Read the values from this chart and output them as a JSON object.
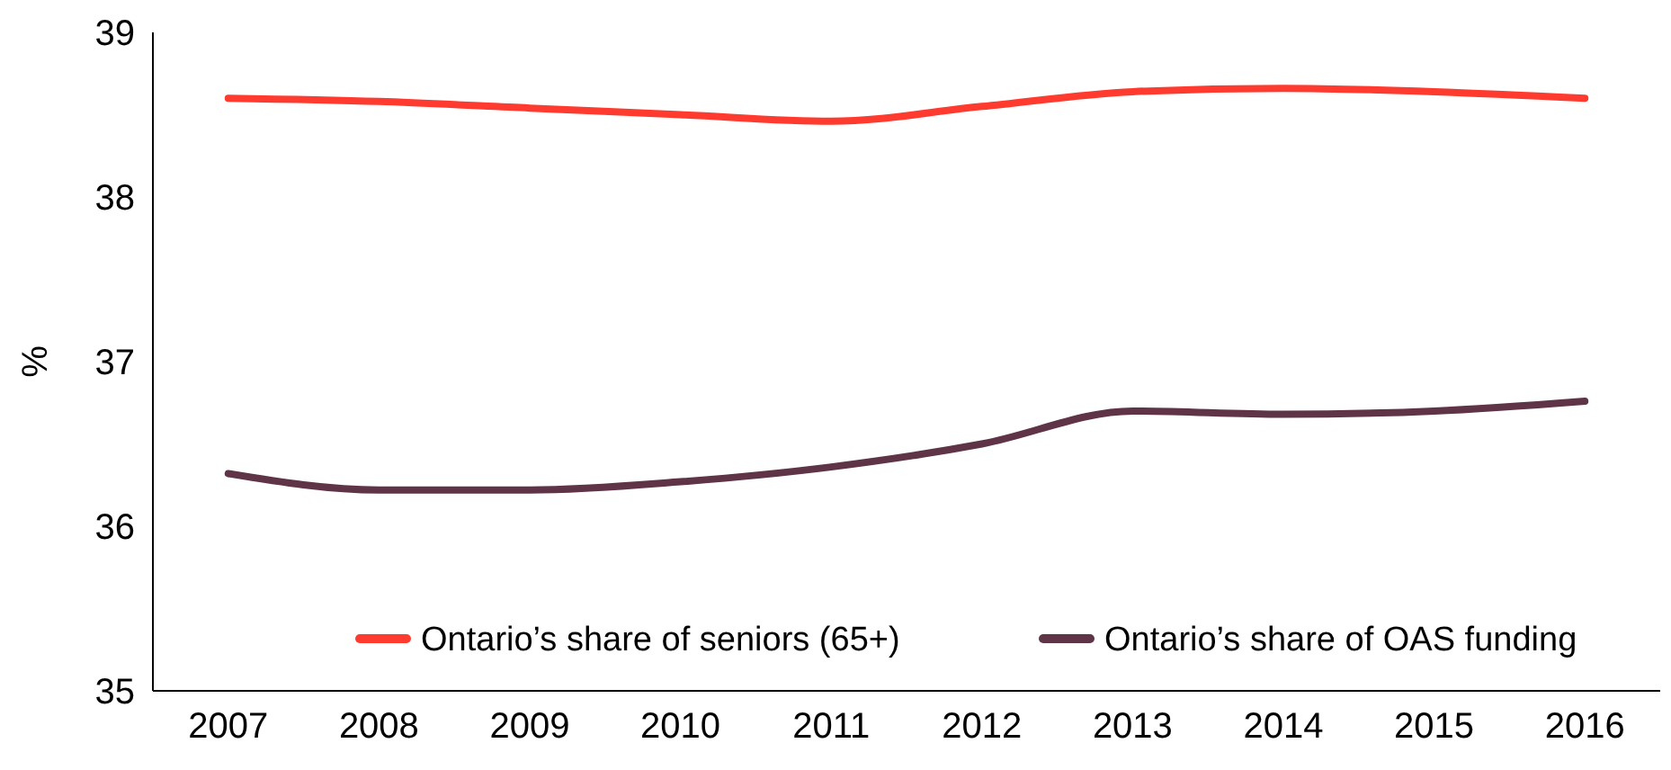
{
  "chart_data": {
    "type": "line",
    "ylabel": "%",
    "categories": [
      "2007",
      "2008",
      "2009",
      "2010",
      "2011",
      "2012",
      "2013",
      "2014",
      "2015",
      "2016"
    ],
    "series": [
      {
        "name": "Ontario’s share of seniors (65+)",
        "color": "#ff3b30",
        "values": [
          38.6,
          38.58,
          38.54,
          38.5,
          38.46,
          38.55,
          38.64,
          38.66,
          38.64,
          38.6
        ]
      },
      {
        "name": "Ontario’s share of OAS funding",
        "color": "#5e3446",
        "values": [
          36.32,
          36.22,
          36.22,
          36.27,
          36.36,
          36.5,
          36.7,
          36.68,
          36.7,
          36.76
        ]
      }
    ],
    "ylim": [
      35,
      39
    ],
    "yticks": [
      35,
      36,
      37,
      38,
      39
    ],
    "grid": false,
    "legend": "bottom right",
    "marker": "none",
    "line_style": "solid"
  }
}
